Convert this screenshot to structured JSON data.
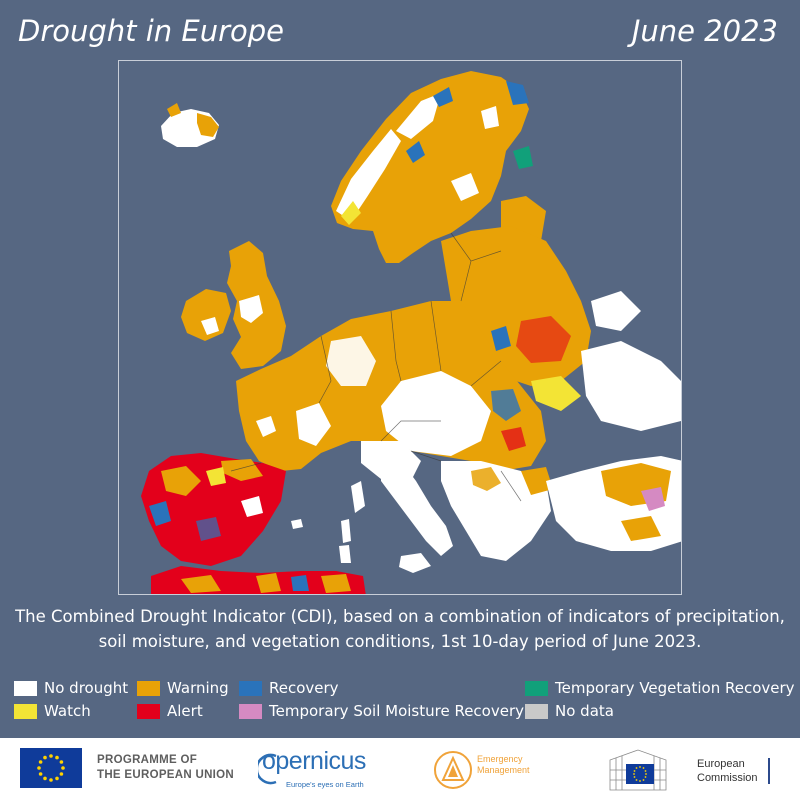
{
  "header": {
    "title": "Drought in Europe",
    "date": "June 2023"
  },
  "map": {
    "background_color": "#566782",
    "frame_color": "#c8ced8"
  },
  "caption": {
    "line1": "The Combined Drought Indicator (CDI), based on a combination of indicators of precipitation,",
    "line2": "soil moisture, and vegetation conditions, 1st 10-day period of June 2023."
  },
  "legend": {
    "no_drought": {
      "label": "No drought",
      "color": "#ffffff"
    },
    "watch": {
      "label": "Watch",
      "color": "#f3e435"
    },
    "warning": {
      "label": "Warning",
      "color": "#e8a207"
    },
    "alert": {
      "label": "Alert",
      "color": "#e3001b"
    },
    "recovery": {
      "label": "Recovery",
      "color": "#2a73bb"
    },
    "temp_soil": {
      "label": "Temporary Soil Moisture Recovery",
      "color": "#d58ac2"
    },
    "temp_veg": {
      "label": "Temporary Vegetation Recovery",
      "color": "#11a07a"
    },
    "no_data": {
      "label": "No data",
      "color": "#c9c9c9"
    }
  },
  "footer": {
    "programme_line1": "PROGRAMME OF",
    "programme_line2": "THE EUROPEAN UNION",
    "copernicus_name": "opernicus",
    "copernicus_sub": "Europe's eyes on Earth",
    "em_line1": "Emergency",
    "em_line2": "Management",
    "ec_line1": "European",
    "ec_line2": "Commission"
  }
}
